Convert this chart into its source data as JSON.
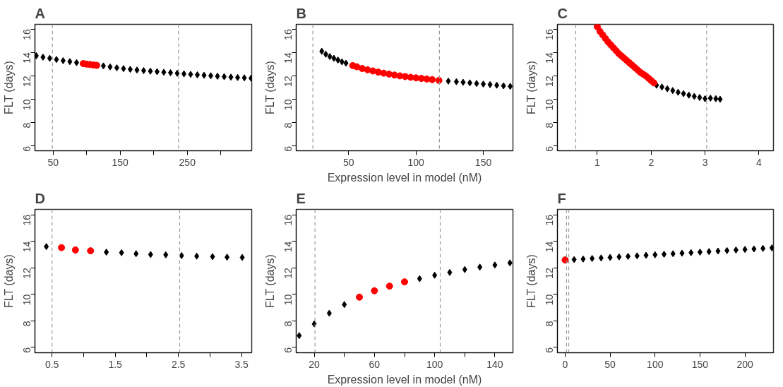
{
  "chart_data": [
    {
      "type": "scatter",
      "title": "A",
      "ylabel": "FLT (days)",
      "xlim": [
        23,
        346
      ],
      "ylim": [
        5.6,
        16.4
      ],
      "xticks": [
        50,
        {
          "value": 100,
          "label": null
        },
        150,
        {
          "value": 200,
          "label": null
        },
        250,
        {
          "value": 300,
          "label": null
        }
      ],
      "yticks": [
        6,
        8,
        10,
        12,
        14,
        16
      ],
      "ref_lines": [
        {
          "axis": "x",
          "value": 49,
          "color": "#999999",
          "line_style": "dashed"
        },
        {
          "axis": "x",
          "value": 237,
          "color": "#999999",
          "line_style": "dashed"
        }
      ],
      "series": [
        {
          "color": "#000000",
          "marker": "diamond",
          "x": [
            25,
            35,
            45,
            55,
            65,
            75,
            85,
            125,
            135,
            145,
            155,
            165,
            175,
            185,
            195,
            205,
            215,
            225,
            235,
            245,
            255,
            265,
            275,
            285,
            295,
            305,
            315,
            325,
            335,
            345
          ],
          "values": [
            13.72,
            13.6,
            13.5,
            13.4,
            13.3,
            13.22,
            13.13,
            12.85,
            12.77,
            12.69,
            12.62,
            12.56,
            12.5,
            12.45,
            12.4,
            12.36,
            12.31,
            12.27,
            12.22,
            12.17,
            12.13,
            12.09,
            12.05,
            12.01,
            11.97,
            11.93,
            11.89,
            11.86,
            11.83,
            11.8
          ]
        },
        {
          "color": "#ff0000",
          "marker": "circle",
          "x": [
            95,
            100,
            105,
            110,
            115
          ],
          "values": [
            13.05,
            13.0,
            12.97,
            12.93,
            12.9
          ]
        }
      ]
    },
    {
      "type": "scatter",
      "title": "B",
      "xlabel": "Expression level in model (nM)",
      "ylabel": "FLT (days)",
      "xlim": [
        11,
        172
      ],
      "ylim": [
        5.6,
        16.4
      ],
      "xticks": [
        50,
        100,
        150
      ],
      "yticks": [
        6,
        8,
        10,
        12,
        14,
        16
      ],
      "ref_lines": [
        {
          "axis": "x",
          "value": 23.4,
          "color": "#999999",
          "line_style": "dashed"
        },
        {
          "axis": "x",
          "value": 117.4,
          "color": "#999999",
          "line_style": "dashed"
        }
      ],
      "series": [
        {
          "color": "#000000",
          "marker": "diamond",
          "x": [
            30,
            33,
            36,
            39,
            42,
            45,
            48,
            124,
            130,
            135,
            140,
            145,
            150,
            155,
            160,
            165,
            170
          ],
          "values": [
            14.1,
            13.85,
            13.65,
            13.5,
            13.35,
            13.2,
            13.08,
            11.55,
            11.5,
            11.45,
            11.4,
            11.35,
            11.3,
            11.25,
            11.2,
            11.15,
            11.1
          ]
        },
        {
          "color": "#ff0000",
          "marker": "circle",
          "x": [
            53,
            56,
            60,
            64,
            68,
            72,
            76,
            80,
            84,
            88,
            92,
            96,
            100,
            104,
            108,
            112,
            117
          ],
          "values": [
            12.88,
            12.78,
            12.63,
            12.52,
            12.42,
            12.32,
            12.23,
            12.15,
            12.07,
            12.0,
            11.94,
            11.88,
            11.83,
            11.78,
            11.73,
            11.68,
            11.61
          ]
        }
      ]
    },
    {
      "type": "scatter",
      "title": "C",
      "ylabel": "FLT (days)",
      "xlim": [
        0.26,
        4.27
      ],
      "ylim": [
        5.6,
        16.4
      ],
      "xticks": [
        1,
        2,
        3,
        4
      ],
      "yticks": [
        6,
        8,
        10,
        12,
        14,
        16
      ],
      "ref_lines": [
        {
          "axis": "x",
          "value": 0.6,
          "color": "#999999",
          "line_style": "dashed"
        },
        {
          "axis": "x",
          "value": 3.03,
          "color": "#999999",
          "line_style": "dashed"
        }
      ],
      "series": [
        {
          "color": "#000000",
          "marker": "diamond",
          "x": [
            2.1,
            2.2,
            2.3,
            2.4,
            2.5,
            2.6,
            2.7,
            2.8,
            2.9,
            3.0,
            3.1,
            3.2,
            3.28
          ],
          "values": [
            11.2,
            11.05,
            10.9,
            10.75,
            10.6,
            10.48,
            10.35,
            10.25,
            10.15,
            10.05,
            10.1,
            10.05,
            10.0
          ]
        },
        {
          "color": "#ff0000",
          "marker": "circle",
          "x": [
            1.0,
            1.05,
            1.1,
            1.15,
            1.2,
            1.25,
            1.3,
            1.35,
            1.4,
            1.45,
            1.5,
            1.55,
            1.6,
            1.65,
            1.7,
            1.75,
            1.8,
            1.85,
            1.9,
            1.95,
            2.0,
            2.05
          ],
          "values": [
            16.2,
            15.8,
            15.5,
            15.2,
            14.9,
            14.65,
            14.4,
            14.15,
            13.9,
            13.7,
            13.5,
            13.3,
            13.1,
            12.9,
            12.7,
            12.5,
            12.3,
            12.15,
            12.0,
            11.8,
            11.6,
            11.4
          ]
        }
      ]
    },
    {
      "type": "scatter",
      "title": "D",
      "ylabel": "FLT (days)",
      "xlim": [
        0.23,
        3.66
      ],
      "ylim": [
        5.6,
        16.4
      ],
      "xticks": [
        0.5,
        {
          "value": 1,
          "label": null
        },
        1.5,
        {
          "value": 2,
          "label": null
        },
        2.5,
        {
          "value": 3,
          "label": null
        },
        3.5
      ],
      "yticks": [
        6,
        8,
        10,
        12,
        14,
        16
      ],
      "ref_lines": [
        {
          "axis": "x",
          "value": 0.5,
          "color": "#999999",
          "line_style": "dashed"
        },
        {
          "axis": "x",
          "value": 2.52,
          "color": "#999999",
          "line_style": "dashed"
        }
      ],
      "series": [
        {
          "color": "#000000",
          "marker": "diamond",
          "x": [
            0.41,
            1.36,
            1.6,
            1.83,
            2.06,
            2.3,
            2.55,
            2.79,
            3.04,
            3.27,
            3.51
          ],
          "values": [
            13.6,
            13.18,
            13.14,
            13.06,
            13.0,
            12.98,
            12.92,
            12.88,
            12.84,
            12.8,
            12.78
          ]
        },
        {
          "color": "#ff0000",
          "marker": "circle",
          "x": [
            0.65,
            0.87,
            1.11
          ],
          "values": [
            13.52,
            13.34,
            13.28
          ]
        }
      ]
    },
    {
      "type": "scatter",
      "title": "E",
      "xlabel": "Expression level in model (nM)",
      "ylabel": "FLT (days)",
      "xlim": [
        8,
        152
      ],
      "ylim": [
        5.6,
        16.4
      ],
      "xticks": [
        20,
        {
          "value": 40,
          "label": null
        },
        60,
        {
          "value": 80,
          "label": null
        },
        100,
        {
          "value": 120,
          "label": null
        },
        140
      ],
      "yticks": [
        6,
        8,
        10,
        12,
        14,
        16
      ],
      "ref_lines": [
        {
          "axis": "x",
          "value": 20.5,
          "color": "#999999",
          "line_style": "dashed"
        },
        {
          "axis": "x",
          "value": 103.7,
          "color": "#999999",
          "line_style": "dashed"
        }
      ],
      "series": [
        {
          "color": "#000000",
          "marker": "diamond",
          "x": [
            10,
            20,
            30,
            40,
            90,
            100,
            110,
            120,
            130,
            140,
            150
          ],
          "values": [
            6.89,
            7.77,
            8.58,
            9.23,
            11.18,
            11.44,
            11.65,
            11.87,
            12.05,
            12.21,
            12.37
          ]
        },
        {
          "color": "#ff0000",
          "marker": "circle",
          "x": [
            50,
            60,
            70,
            80
          ],
          "values": [
            9.79,
            10.27,
            10.62,
            10.94
          ]
        }
      ]
    },
    {
      "type": "scatter",
      "title": "F",
      "ylabel": "FLT (days)",
      "xlim": [
        -8.6,
        231.7
      ],
      "ylim": [
        5.6,
        16.4
      ],
      "xticks": [
        0,
        50,
        100,
        150,
        200
      ],
      "yticks": [
        6,
        8,
        10,
        12,
        14,
        16
      ],
      "ref_lines": [
        {
          "axis": "x",
          "value": 1.5,
          "color": "#999999",
          "line_style": "dashed"
        },
        {
          "axis": "x",
          "value": 4,
          "color": "#999999",
          "line_style": "dashed"
        }
      ],
      "series": [
        {
          "color": "#000000",
          "marker": "diamond",
          "x": [
            10,
            20,
            30,
            40,
            50,
            60,
            70,
            80,
            90,
            100,
            110,
            120,
            130,
            140,
            150,
            160,
            170,
            180,
            190,
            200,
            210,
            220,
            230
          ],
          "values": [
            12.62,
            12.66,
            12.7,
            12.74,
            12.78,
            12.82,
            12.86,
            12.9,
            12.94,
            12.98,
            13.02,
            13.06,
            13.1,
            13.14,
            13.18,
            13.22,
            13.26,
            13.3,
            13.34,
            13.38,
            13.42,
            13.46,
            13.5
          ]
        },
        {
          "color": "#ff0000",
          "marker": "circle",
          "x": [
            0
          ],
          "values": [
            12.59
          ]
        }
      ]
    }
  ]
}
